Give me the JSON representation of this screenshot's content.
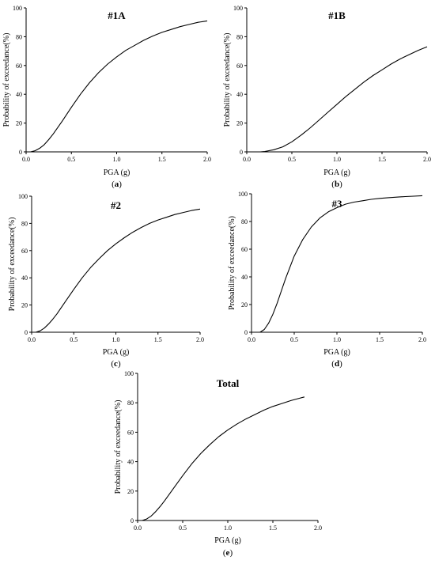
{
  "chart_data": [
    {
      "type": "line",
      "title": "#1A",
      "xlabel": "PGA (g)",
      "ylabel": "Probability of exceedance(%)",
      "caption_open": "(",
      "caption_letter": "a",
      "caption_close": ")",
      "xlim": [
        0,
        2
      ],
      "ylim": [
        0,
        100
      ],
      "xticks": [
        "0.0",
        "0.5",
        "1.0",
        "1.5",
        "2.0"
      ],
      "yticks": [
        "0",
        "20",
        "40",
        "60",
        "80",
        "100"
      ],
      "grid": false,
      "series": [
        {
          "values": {
            "x": [
              0.05,
              0.1,
              0.15,
              0.2,
              0.25,
              0.3,
              0.4,
              0.5,
              0.6,
              0.7,
              0.8,
              0.9,
              1.0,
              1.1,
              1.2,
              1.3,
              1.4,
              1.5,
              1.6,
              1.7,
              1.8,
              1.9,
              2.0
            ],
            "y": [
              0.0,
              0.8,
              2.5,
              5.0,
              8.5,
              12.5,
              21.5,
              31.0,
              40.0,
              48.0,
              55.0,
              61.0,
              66.0,
              70.5,
              74.0,
              77.5,
              80.5,
              83.0,
              85.0,
              87.0,
              88.5,
              90.0,
              91.0
            ]
          }
        }
      ]
    },
    {
      "type": "line",
      "title": "#1B",
      "xlabel": "PGA (g)",
      "ylabel": "Probability of exceedance(%)",
      "caption_open": "(",
      "caption_letter": "b",
      "caption_close": ")",
      "xlim": [
        0,
        2
      ],
      "ylim": [
        0,
        100
      ],
      "xticks": [
        "0.0",
        "0.5",
        "1.0",
        "1.5",
        "2.0"
      ],
      "yticks": [
        "0",
        "20",
        "40",
        "60",
        "80",
        "100"
      ],
      "grid": false,
      "series": [
        {
          "values": {
            "x": [
              0.15,
              0.2,
              0.3,
              0.4,
              0.5,
              0.6,
              0.7,
              0.8,
              0.9,
              1.0,
              1.1,
              1.2,
              1.3,
              1.4,
              1.5,
              1.6,
              1.7,
              1.8,
              1.9,
              2.0
            ],
            "y": [
              0.0,
              0.3,
              1.5,
              3.5,
              7.0,
              11.5,
              16.5,
              22.0,
              27.5,
              33.0,
              38.5,
              43.5,
              48.5,
              53.0,
              57.0,
              61.0,
              64.5,
              67.5,
              70.5,
              73.0
            ]
          }
        }
      ]
    },
    {
      "type": "line",
      "title": "#2",
      "xlabel": "PGA (g)",
      "ylabel": "Probability of exceedance(%)",
      "caption_open": "(",
      "caption_letter": "c",
      "caption_close": ")",
      "xlim": [
        0,
        2
      ],
      "ylim": [
        0,
        100
      ],
      "xticks": [
        "0.0",
        "0.5",
        "1.0",
        "1.5",
        "2.0"
      ],
      "yticks": [
        "0",
        "20",
        "40",
        "60",
        "80",
        "100"
      ],
      "grid": false,
      "series": [
        {
          "values": {
            "x": [
              0.05,
              0.1,
              0.15,
              0.2,
              0.25,
              0.3,
              0.4,
              0.5,
              0.6,
              0.7,
              0.8,
              0.9,
              1.0,
              1.1,
              1.2,
              1.3,
              1.4,
              1.5,
              1.6,
              1.7,
              1.8,
              1.9,
              2.0
            ],
            "y": [
              0.0,
              1.0,
              3.0,
              6.0,
              9.5,
              13.5,
              22.5,
              31.5,
              40.0,
              47.5,
              54.0,
              60.0,
              65.0,
              69.5,
              73.5,
              77.0,
              80.0,
              82.5,
              84.5,
              86.5,
              88.0,
              89.5,
              90.5
            ]
          }
        }
      ]
    },
    {
      "type": "line",
      "title": "#3",
      "xlabel": "PGA (g)",
      "ylabel": "Probability of exceedance(%)",
      "caption_open": "(",
      "caption_letter": "d",
      "caption_close": ")",
      "xlim": [
        0,
        2
      ],
      "ylim": [
        0,
        100
      ],
      "xticks": [
        "0.0",
        "0.5",
        "1.0",
        "1.5",
        "2.0"
      ],
      "yticks": [
        "0",
        "20",
        "40",
        "60",
        "80",
        "100"
      ],
      "grid": false,
      "series": [
        {
          "values": {
            "x": [
              0.1,
              0.15,
              0.2,
              0.25,
              0.3,
              0.35,
              0.4,
              0.5,
              0.6,
              0.7,
              0.8,
              0.9,
              1.0,
              1.1,
              1.2,
              1.3,
              1.4,
              1.5,
              1.6,
              1.7,
              1.8,
              1.9,
              2.0
            ],
            "y": [
              0.0,
              2.0,
              6.5,
              13.0,
              21.0,
              30.0,
              39.0,
              55.0,
              67.0,
              76.0,
              82.5,
              87.0,
              90.0,
              92.5,
              94.0,
              95.0,
              96.0,
              96.7,
              97.2,
              97.6,
              98.0,
              98.3,
              98.6
            ]
          }
        }
      ]
    },
    {
      "type": "line",
      "title": "Total",
      "xlabel": "PGA (g)",
      "ylabel": "Probability of exceedance(%)",
      "caption_open": "(",
      "caption_letter": "e",
      "caption_close": ")",
      "xlim": [
        0,
        2
      ],
      "ylim": [
        0,
        100
      ],
      "xticks": [
        "0.0",
        "0.5",
        "1.0",
        "1.5",
        "2.0"
      ],
      "yticks": [
        "0",
        "20",
        "40",
        "60",
        "80",
        "100"
      ],
      "grid": false,
      "series": [
        {
          "values": {
            "x": [
              0.05,
              0.1,
              0.15,
              0.2,
              0.25,
              0.3,
              0.4,
              0.5,
              0.6,
              0.7,
              0.8,
              0.9,
              1.0,
              1.1,
              1.2,
              1.3,
              1.4,
              1.5,
              1.6,
              1.7,
              1.85
            ],
            "y": [
              0.0,
              1.0,
              3.0,
              6.0,
              9.5,
              13.5,
              22.0,
              30.5,
              38.5,
              45.5,
              51.5,
              57.0,
              61.5,
              65.5,
              69.0,
              72.0,
              75.0,
              77.5,
              79.5,
              81.5,
              84.0
            ]
          }
        }
      ]
    }
  ]
}
